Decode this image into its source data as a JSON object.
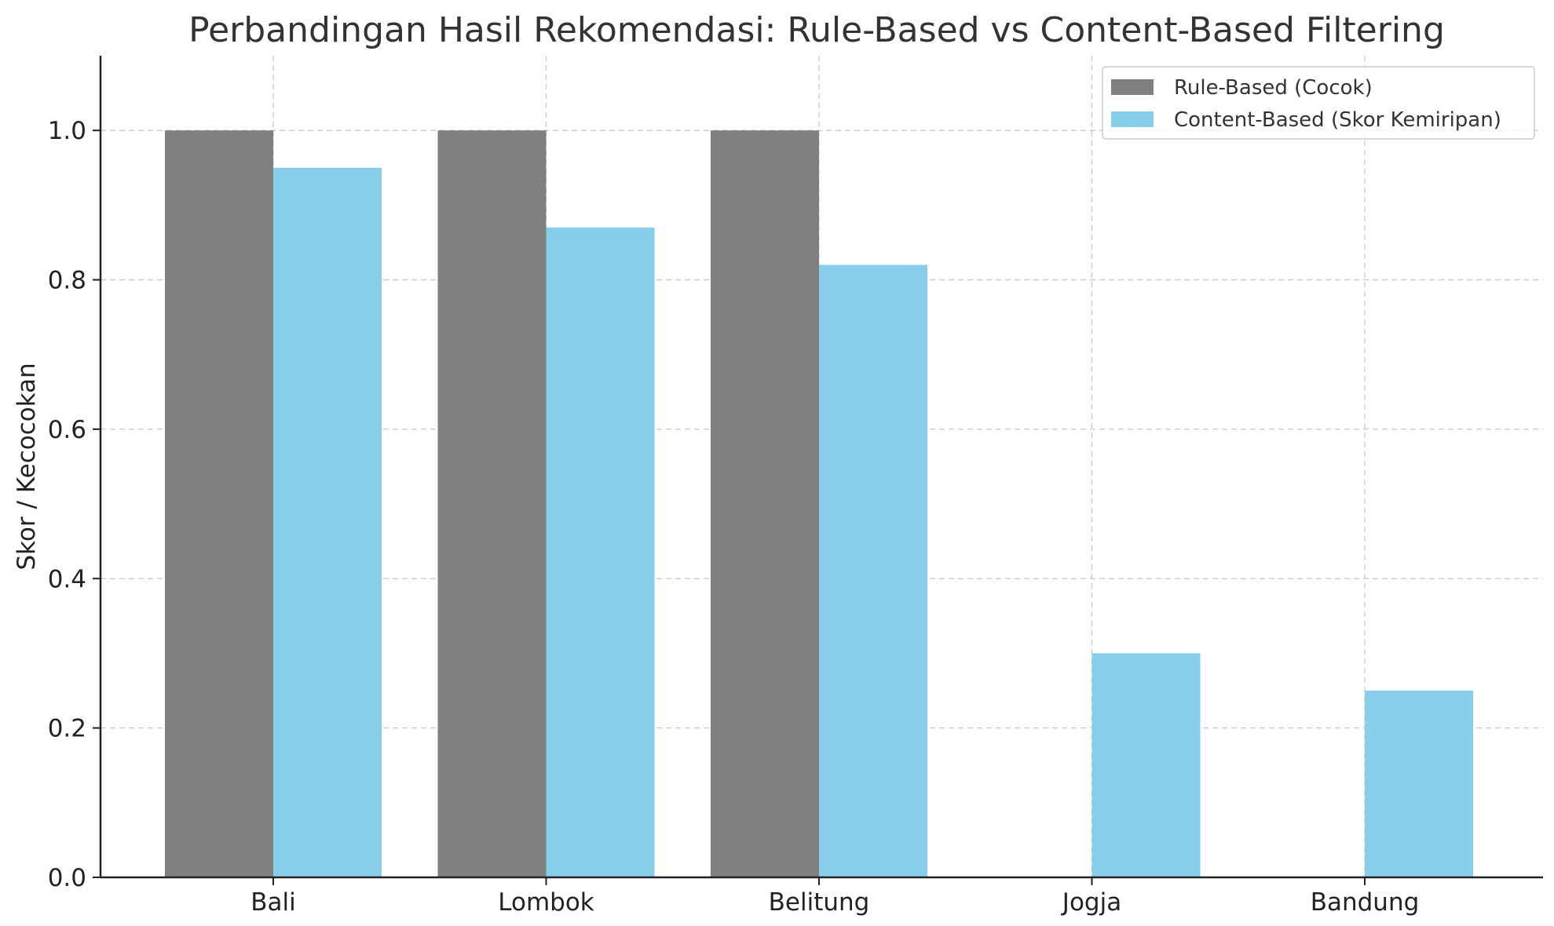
{
  "chart_data": {
    "type": "bar",
    "title": "Perbandingan Hasil Rekomendasi: Rule-Based vs Content-Based Filtering",
    "xlabel": "",
    "ylabel": "Skor / Kecocokan",
    "categories": [
      "Bali",
      "Lombok",
      "Belitung",
      "Jogja",
      "Bandung"
    ],
    "series": [
      {
        "name": "Rule-Based (Cocok)",
        "color": "#808080",
        "values": [
          1.0,
          1.0,
          1.0,
          0.0,
          0.0
        ]
      },
      {
        "name": "Content-Based (Skor Kemiripan)",
        "color": "#87ceeb",
        "values": [
          0.95,
          0.87,
          0.82,
          0.3,
          0.25
        ]
      }
    ],
    "ylim": [
      0,
      1.1
    ],
    "yticks": [
      "0.0",
      "0.2",
      "0.4",
      "0.6",
      "0.8",
      "1.0"
    ],
    "grid": true,
    "legend_position": "top-right"
  }
}
